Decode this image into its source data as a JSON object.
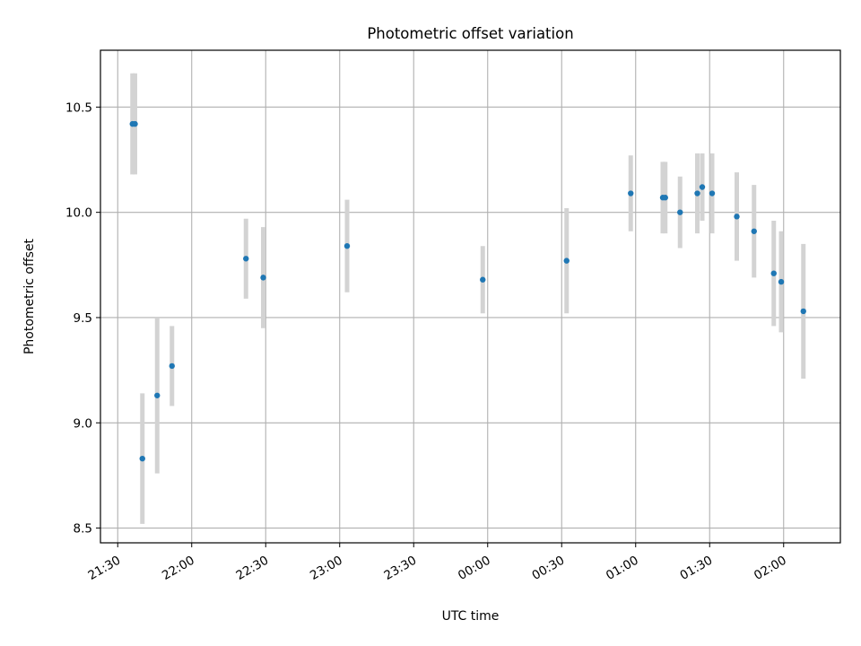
{
  "chart_data": {
    "type": "scatter",
    "title": "Photometric offset variation",
    "xlabel": "UTC time",
    "ylabel": "Photometric offset",
    "x_axis_type": "time",
    "xlim": [
      "21:23",
      "02:23"
    ],
    "ylim": [
      8.43,
      10.77
    ],
    "x_ticks": [
      "21:30",
      "22:00",
      "22:30",
      "23:00",
      "23:30",
      "00:00",
      "00:30",
      "01:00",
      "01:30",
      "02:00"
    ],
    "y_ticks": [
      8.5,
      9.0,
      9.5,
      10.0,
      10.5
    ],
    "y_tick_labels": [
      "8.5",
      "9.0",
      "9.5",
      "10.0",
      "10.5"
    ],
    "grid": true,
    "series": [
      {
        "marker_color": "#1f77b4",
        "errorbar_color": "#d3d3d3",
        "points": [
          {
            "x": "21:36",
            "y": 10.42,
            "err": 0.24
          },
          {
            "x": "21:37",
            "y": 10.42,
            "err": 0.24
          },
          {
            "x": "21:40",
            "y": 8.83,
            "err": 0.31
          },
          {
            "x": "21:46",
            "y": 9.13,
            "err": 0.37
          },
          {
            "x": "21:52",
            "y": 9.27,
            "err": 0.19
          },
          {
            "x": "22:22",
            "y": 9.78,
            "err": 0.19
          },
          {
            "x": "22:29",
            "y": 9.69,
            "err": 0.24
          },
          {
            "x": "23:03",
            "y": 9.84,
            "err": 0.22
          },
          {
            "x": "23:58",
            "y": 9.68,
            "err": 0.16
          },
          {
            "x": "00:32",
            "y": 9.77,
            "err": 0.25
          },
          {
            "x": "00:58",
            "y": 10.09,
            "err": 0.18
          },
          {
            "x": "01:11",
            "y": 10.07,
            "err": 0.17
          },
          {
            "x": "01:12",
            "y": 10.07,
            "err": 0.17
          },
          {
            "x": "01:18",
            "y": 10.0,
            "err": 0.17
          },
          {
            "x": "01:25",
            "y": 10.09,
            "err": 0.19
          },
          {
            "x": "01:27",
            "y": 10.12,
            "err": 0.16
          },
          {
            "x": "01:31",
            "y": 10.09,
            "err": 0.19
          },
          {
            "x": "01:41",
            "y": 9.98,
            "err": 0.21
          },
          {
            "x": "01:48",
            "y": 9.91,
            "err": 0.22
          },
          {
            "x": "01:56",
            "y": 9.71,
            "err": 0.25
          },
          {
            "x": "01:59",
            "y": 9.67,
            "err": 0.24
          },
          {
            "x": "02:08",
            "y": 9.53,
            "err": 0.32
          }
        ]
      }
    ]
  }
}
